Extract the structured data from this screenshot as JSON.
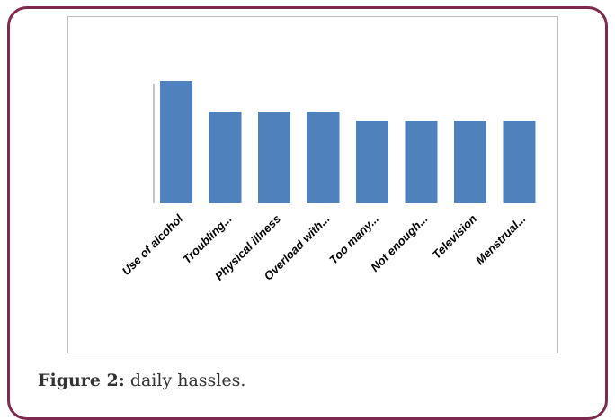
{
  "chart_data": {
    "type": "bar",
    "categories": [
      "Use of alcohol",
      "Troubling...",
      "Physical illness",
      "Overload with...",
      "Too many...",
      "Not enough...",
      "Television",
      "Menstrual..."
    ],
    "values": [
      4,
      3,
      3,
      3,
      2.7,
      2.7,
      2.7,
      2.7
    ],
    "ylim": [
      0,
      4.5
    ],
    "bar_color": "#4f81bd",
    "grid": false,
    "legend": "none"
  },
  "caption": {
    "label": "Figure 2:",
    "text": "daily hassles."
  }
}
